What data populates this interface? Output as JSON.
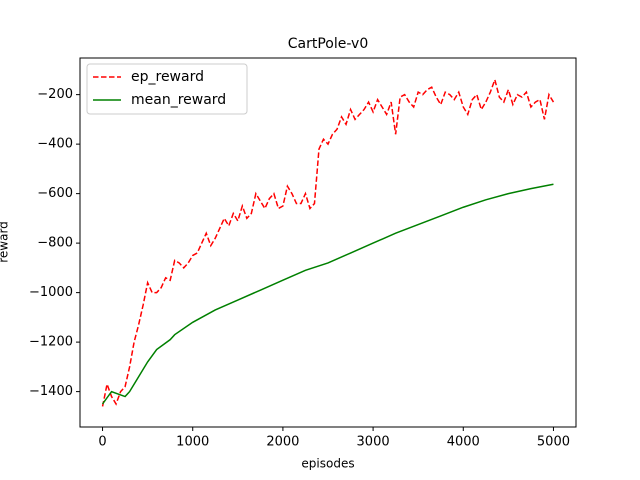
{
  "chart_data": {
    "type": "line",
    "title": "CartPole-v0",
    "xlabel": "episodes",
    "ylabel": "reward",
    "xlim": [
      -250,
      5250
    ],
    "ylim": [
      -1543,
      -52
    ],
    "xticks": [
      0,
      1000,
      2000,
      3000,
      4000,
      5000
    ],
    "yticks": [
      {
        "value": -1400,
        "label": "−1400"
      },
      {
        "value": -1200,
        "label": "−1200"
      },
      {
        "value": -1000,
        "label": "−1000"
      },
      {
        "value": -800,
        "label": "−800"
      },
      {
        "value": -600,
        "label": "−600"
      },
      {
        "value": -400,
        "label": "−400"
      },
      {
        "value": -200,
        "label": "−200"
      }
    ],
    "legend": "upper left",
    "series": [
      {
        "name": "ep_reward",
        "color": "#ff0000",
        "linestyle": "dashed",
        "x": [
          0,
          50,
          100,
          150,
          200,
          250,
          300,
          350,
          400,
          450,
          500,
          550,
          600,
          650,
          700,
          750,
          800,
          850,
          900,
          950,
          1000,
          1050,
          1100,
          1150,
          1200,
          1250,
          1300,
          1350,
          1400,
          1450,
          1500,
          1550,
          1600,
          1650,
          1700,
          1750,
          1800,
          1850,
          1900,
          1950,
          2000,
          2050,
          2100,
          2150,
          2200,
          2250,
          2300,
          2350,
          2400,
          2450,
          2500,
          2550,
          2600,
          2650,
          2700,
          2750,
          2800,
          2850,
          2900,
          2950,
          3000,
          3050,
          3100,
          3150,
          3200,
          3250,
          3300,
          3350,
          3400,
          3450,
          3500,
          3550,
          3600,
          3650,
          3700,
          3750,
          3800,
          3850,
          3900,
          3950,
          4000,
          4050,
          4100,
          4150,
          4200,
          4250,
          4300,
          4350,
          4400,
          4450,
          4500,
          4550,
          4600,
          4650,
          4700,
          4750,
          4800,
          4850,
          4900,
          4950,
          5000
        ],
        "values": [
          -1460,
          -1370,
          -1420,
          -1450,
          -1400,
          -1380,
          -1300,
          -1200,
          -1130,
          -1050,
          -960,
          -1000,
          -1000,
          -980,
          -940,
          -950,
          -870,
          -880,
          -900,
          -880,
          -850,
          -840,
          -800,
          -760,
          -810,
          -780,
          -740,
          -700,
          -730,
          -680,
          -710,
          -650,
          -700,
          -680,
          -600,
          -630,
          -660,
          -620,
          -600,
          -660,
          -650,
          -570,
          -600,
          -640,
          -640,
          -600,
          -660,
          -640,
          -420,
          -380,
          -400,
          -360,
          -340,
          -290,
          -320,
          -260,
          -300,
          -280,
          -260,
          -230,
          -270,
          -220,
          -250,
          -280,
          -230,
          -360,
          -210,
          -200,
          -230,
          -250,
          -190,
          -200,
          -180,
          -170,
          -210,
          -240,
          -190,
          -200,
          -220,
          -190,
          -250,
          -280,
          -220,
          -200,
          -260,
          -230,
          -190,
          -140,
          -210,
          -230,
          -180,
          -240,
          -200,
          -210,
          -190,
          -250,
          -230,
          -220,
          -300,
          -200,
          -230
        ]
      },
      {
        "name": "mean_reward",
        "color": "#008000",
        "linestyle": "solid",
        "x": [
          0,
          100,
          250,
          300,
          400,
          500,
          600,
          750,
          800,
          1000,
          1250,
          1500,
          1750,
          2000,
          2250,
          2500,
          2750,
          3000,
          3250,
          3500,
          3750,
          4000,
          4250,
          4500,
          4750,
          5000
        ],
        "values": [
          -1450,
          -1400,
          -1420,
          -1400,
          -1340,
          -1280,
          -1230,
          -1190,
          -1170,
          -1120,
          -1070,
          -1030,
          -990,
          -950,
          -910,
          -880,
          -840,
          -800,
          -760,
          -725,
          -690,
          -655,
          -625,
          -600,
          -580,
          -562
        ]
      }
    ]
  }
}
